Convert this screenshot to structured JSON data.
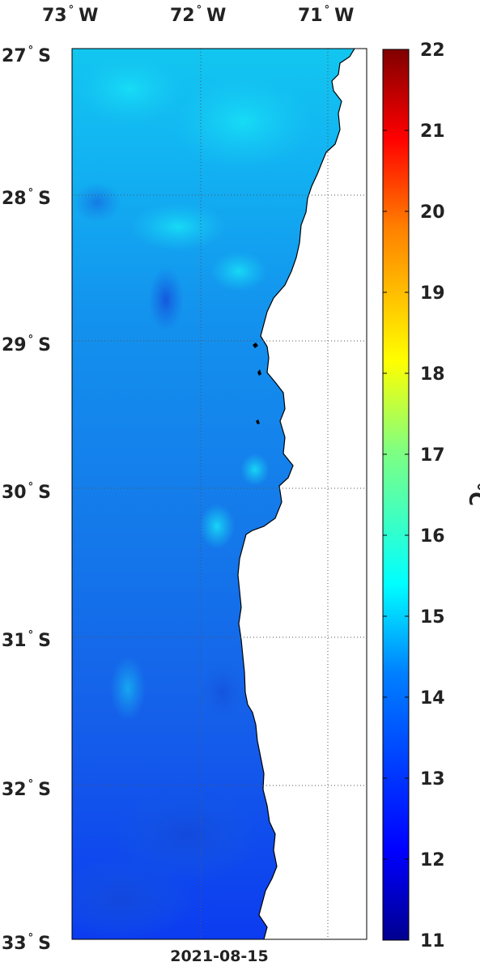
{
  "map": {
    "longitude_labels": [
      {
        "deg": "73",
        "hemi": "W"
      },
      {
        "deg": "72",
        "hemi": "W"
      },
      {
        "deg": "71",
        "hemi": "W"
      }
    ],
    "latitude_labels": [
      {
        "deg": "27",
        "hemi": "S"
      },
      {
        "deg": "28",
        "hemi": "S"
      },
      {
        "deg": "29",
        "hemi": "S"
      },
      {
        "deg": "30",
        "hemi": "S"
      },
      {
        "deg": "31",
        "hemi": "S"
      },
      {
        "deg": "32",
        "hemi": "S"
      },
      {
        "deg": "33",
        "hemi": "S"
      }
    ],
    "lon_range": [
      -73.0,
      -70.7
    ],
    "lat_range": [
      -33.0,
      -27.0
    ],
    "date": "2021-08-15",
    "grid": true
  },
  "colorbar": {
    "ticks": [
      "11",
      "12",
      "13",
      "14",
      "15",
      "16",
      "17",
      "18",
      "19",
      "20",
      "21",
      "22"
    ],
    "range": [
      11,
      22
    ],
    "unit": "°C",
    "colormap": "jet"
  },
  "colors": {
    "land": "#ffffff",
    "coastline": "#000000",
    "grid": "#555555",
    "text": "#222222"
  }
}
